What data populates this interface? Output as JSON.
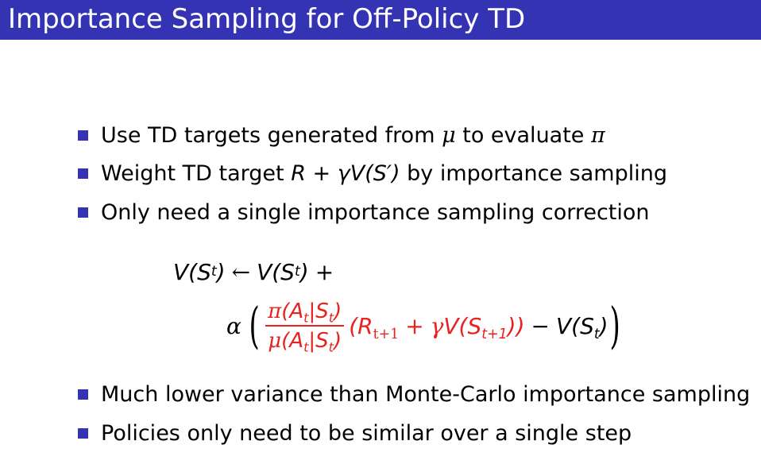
{
  "title": "Importance Sampling for Off-Policy TD",
  "bullets_top": [
    {
      "before": "Use TD targets generated from ",
      "sym1": "μ",
      "middle": " to evaluate ",
      "sym2": "π"
    },
    {
      "before": "Weight TD target ",
      "formula": "R + γV(S′)",
      "after": " by importance sampling"
    },
    {
      "text": "Only need a single importance sampling correction"
    }
  ],
  "equation": {
    "line1_lhs": "V(S",
    "sub_t": "t",
    "line1_close": ")",
    "arrow": "←",
    "line1_rhs": "V(S",
    "plus": "+",
    "alpha": "α",
    "open_paren": "(",
    "close_paren": ")",
    "numerator_pi": "π",
    "numerator_body": "(A",
    "bar": "|S",
    "denominator_mu": "μ",
    "target_open": "(R",
    "sub_t1": "t+1",
    "gamma": "γ",
    "target_v": "V(S",
    "target_close": "))",
    "minus": "−"
  },
  "bullets_bottom": [
    {
      "text": "Much lower variance than Monte-Carlo importance sampling"
    },
    {
      "text": "Policies only need to be similar over a single step"
    }
  ],
  "colors": {
    "title_bar": "#3333b3",
    "bullet": "#3333b3",
    "highlight": "#e8231f"
  }
}
